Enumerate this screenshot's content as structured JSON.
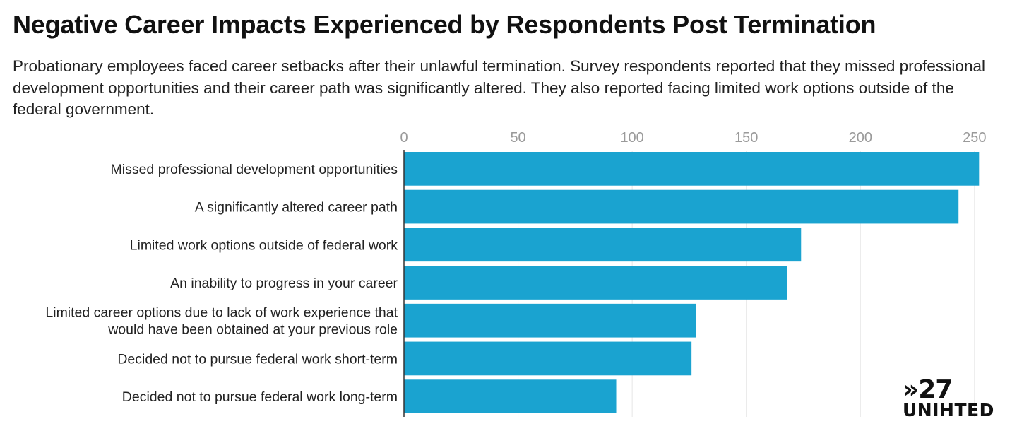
{
  "header": {
    "title": "Negative Career Impacts Experienced by Respondents Post Termination",
    "subtitle": "Probationary employees faced career setbacks after their unlawful termination. Survey respondents reported that they missed professional development opportunities and their career path was significantly altered. They also reported facing limited work options outside of the federal government."
  },
  "chart_data": {
    "type": "bar",
    "orientation": "horizontal",
    "title": "Negative Career Impacts Experienced by Respondents Post Termination",
    "subtitle": "Probationary employees faced career setbacks after their unlawful termination. Survey respondents reported that they missed professional development opportunities and their career path was significantly altered. They also reported facing limited work options outside of the federal government.",
    "xlabel": "",
    "ylabel": "",
    "categories": [
      [
        "Missed professional development opportunities"
      ],
      [
        "A significantly altered career path"
      ],
      [
        "Limited work options outside of federal work"
      ],
      [
        "An inability to progress in your career"
      ],
      [
        "Limited career options due to lack of work experience that",
        "would have been obtained at your previous role"
      ],
      [
        "Decided not to pursue federal work short-term"
      ],
      [
        "Decided not to pursue federal work long-term"
      ]
    ],
    "values": [
      252,
      243,
      174,
      168,
      128,
      126,
      93
    ],
    "xlim": [
      0,
      255
    ],
    "ticks": [
      0,
      50,
      100,
      150,
      200,
      250
    ],
    "axis_position": "top",
    "grid": true,
    "legend": "none",
    "bar_color": "#1aa3d0",
    "grid_color": "#e6e6e6",
    "axis_color": "#333333"
  },
  "logo": {
    "line1": "»27",
    "line2": "UNIHTED"
  }
}
